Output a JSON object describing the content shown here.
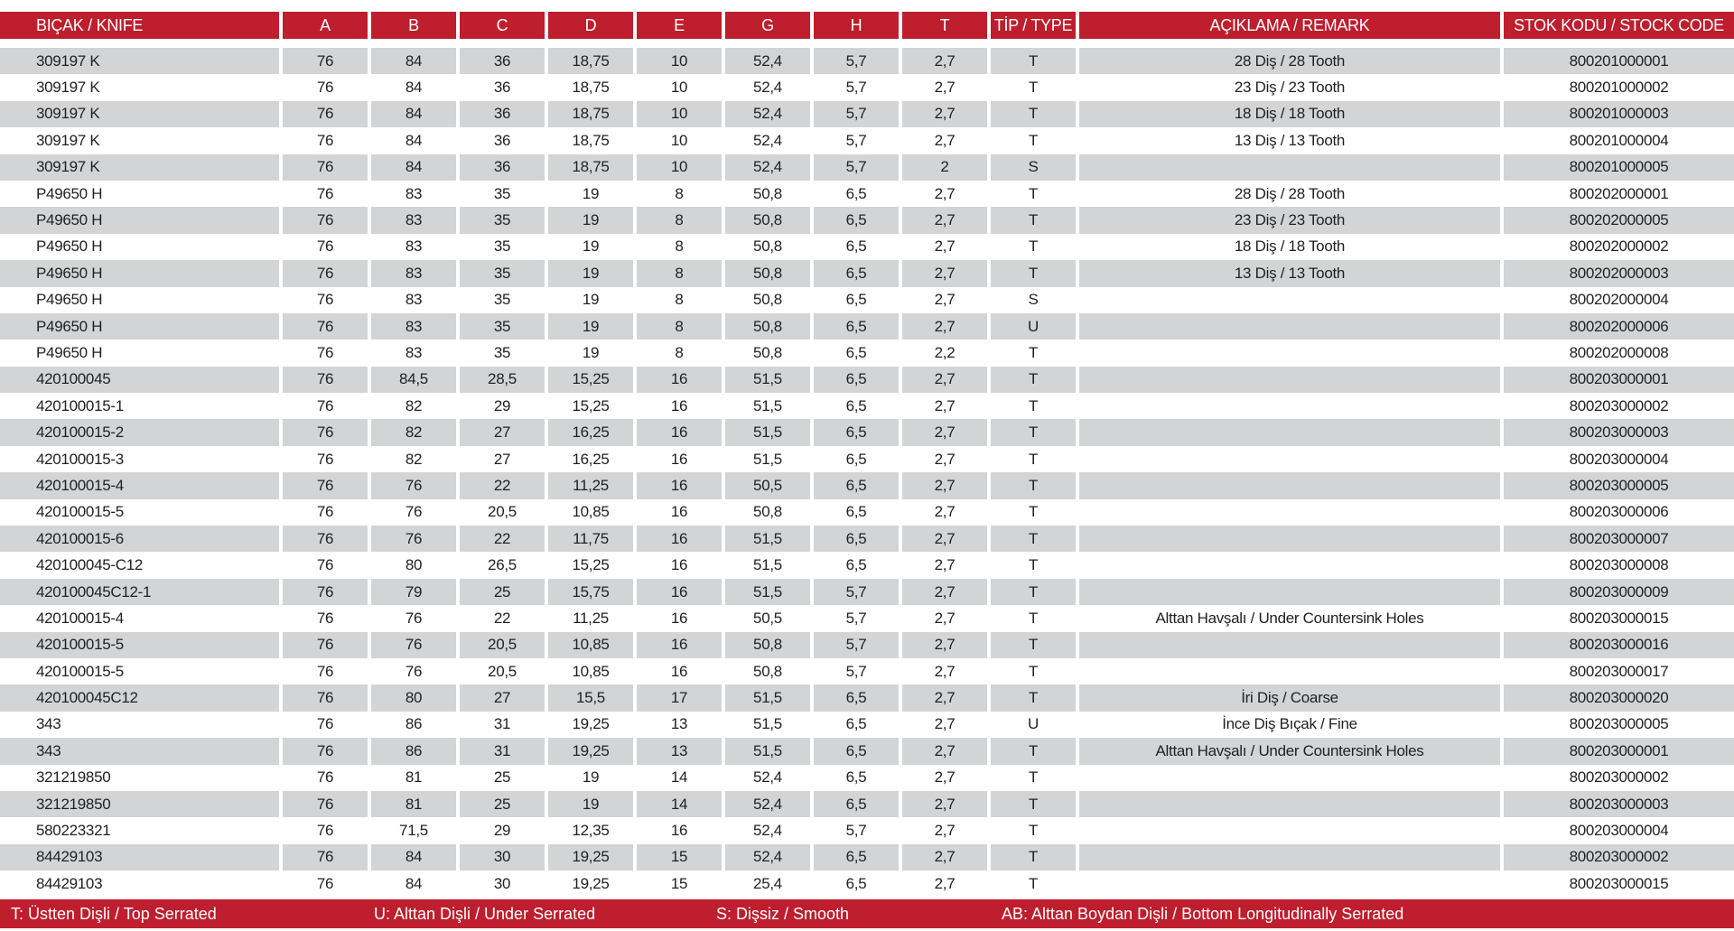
{
  "colors": {
    "header": "#be1e2d",
    "stripe": "#d3d4d6"
  },
  "headers": [
    "BIÇAK / KNIFE",
    "A",
    "B",
    "C",
    "D",
    "E",
    "G",
    "H",
    "T",
    "TİP / TYPE",
    "AÇIKLAMA / REMARK",
    "STOK KODU / STOCK CODE"
  ],
  "rows": [
    [
      "309197 K",
      "76",
      "84",
      "36",
      "18,75",
      "10",
      "52,4",
      "5,7",
      "2,7",
      "T",
      "28 Diş / 28 Tooth",
      "800201000001"
    ],
    [
      "309197 K",
      "76",
      "84",
      "36",
      "18,75",
      "10",
      "52,4",
      "5,7",
      "2,7",
      "T",
      "23 Diş / 23 Tooth",
      "800201000002"
    ],
    [
      "309197 K",
      "76",
      "84",
      "36",
      "18,75",
      "10",
      "52,4",
      "5,7",
      "2,7",
      "T",
      "18 Diş / 18 Tooth",
      "800201000003"
    ],
    [
      "309197 K",
      "76",
      "84",
      "36",
      "18,75",
      "10",
      "52,4",
      "5,7",
      "2,7",
      "T",
      "13 Diş / 13 Tooth",
      "800201000004"
    ],
    [
      "309197 K",
      "76",
      "84",
      "36",
      "18,75",
      "10",
      "52,4",
      "5,7",
      "2",
      "S",
      "",
      "800201000005"
    ],
    [
      "P49650 H",
      "76",
      "83",
      "35",
      "19",
      "8",
      "50,8",
      "6,5",
      "2,7",
      "T",
      "28 Diş / 28 Tooth",
      "800202000001"
    ],
    [
      "P49650 H",
      "76",
      "83",
      "35",
      "19",
      "8",
      "50,8",
      "6,5",
      "2,7",
      "T",
      "23 Diş / 23 Tooth",
      "800202000005"
    ],
    [
      "P49650 H",
      "76",
      "83",
      "35",
      "19",
      "8",
      "50,8",
      "6,5",
      "2,7",
      "T",
      "18 Diş / 18 Tooth",
      "800202000002"
    ],
    [
      "P49650 H",
      "76",
      "83",
      "35",
      "19",
      "8",
      "50,8",
      "6,5",
      "2,7",
      "T",
      "13 Diş / 13 Tooth",
      "800202000003"
    ],
    [
      "P49650 H",
      "76",
      "83",
      "35",
      "19",
      "8",
      "50,8",
      "6,5",
      "2,7",
      "S",
      "",
      "800202000004"
    ],
    [
      "P49650 H",
      "76",
      "83",
      "35",
      "19",
      "8",
      "50,8",
      "6,5",
      "2,7",
      "U",
      "",
      "800202000006"
    ],
    [
      "P49650 H",
      "76",
      "83",
      "35",
      "19",
      "8",
      "50,8",
      "6,5",
      "2,2",
      "T",
      "",
      "800202000008"
    ],
    [
      "420100045",
      "76",
      "84,5",
      "28,5",
      "15,25",
      "16",
      "51,5",
      "6,5",
      "2,7",
      "T",
      "",
      "800203000001"
    ],
    [
      "420100015-1",
      "76",
      "82",
      "29",
      "15,25",
      "16",
      "51,5",
      "6,5",
      "2,7",
      "T",
      "",
      "800203000002"
    ],
    [
      "420100015-2",
      "76",
      "82",
      "27",
      "16,25",
      "16",
      "51,5",
      "6,5",
      "2,7",
      "T",
      "",
      "800203000003"
    ],
    [
      "420100015-3",
      "76",
      "82",
      "27",
      "16,25",
      "16",
      "51,5",
      "6,5",
      "2,7",
      "T",
      "",
      "800203000004"
    ],
    [
      "420100015-4",
      "76",
      "76",
      "22",
      "11,25",
      "16",
      "50,5",
      "6,5",
      "2,7",
      "T",
      "",
      "800203000005"
    ],
    [
      "420100015-5",
      "76",
      "76",
      "20,5",
      "10,85",
      "16",
      "50,8",
      "6,5",
      "2,7",
      "T",
      "",
      "800203000006"
    ],
    [
      "420100015-6",
      "76",
      "76",
      "22",
      "11,75",
      "16",
      "51,5",
      "6,5",
      "2,7",
      "T",
      "",
      "800203000007"
    ],
    [
      "420100045-C12",
      "76",
      "80",
      "26,5",
      "15,25",
      "16",
      "51,5",
      "6,5",
      "2,7",
      "T",
      "",
      "800203000008"
    ],
    [
      "420100045C12-1",
      "76",
      "79",
      "25",
      "15,75",
      "16",
      "51,5",
      "5,7",
      "2,7",
      "T",
      "",
      "800203000009"
    ],
    [
      "420100015-4",
      "76",
      "76",
      "22",
      "11,25",
      "16",
      "50,5",
      "5,7",
      "2,7",
      "T",
      "Alttan Havşalı / Under Countersink Holes",
      "800203000015"
    ],
    [
      "420100015-5",
      "76",
      "76",
      "20,5",
      "10,85",
      "16",
      "50,8",
      "5,7",
      "2,7",
      "T",
      "",
      "800203000016"
    ],
    [
      "420100015-5",
      "76",
      "76",
      "20,5",
      "10,85",
      "16",
      "50,8",
      "5,7",
      "2,7",
      "T",
      "",
      "800203000017"
    ],
    [
      "420100045C12",
      "76",
      "80",
      "27",
      "15,5",
      "17",
      "51,5",
      "6,5",
      "2,7",
      "T",
      "İri Diş / Coarse",
      "800203000020"
    ],
    [
      "343",
      "76",
      "86",
      "31",
      "19,25",
      "13",
      "51,5",
      "6,5",
      "2,7",
      "U",
      "İnce Diş Bıçak / Fine",
      "800203000005"
    ],
    [
      "343",
      "76",
      "86",
      "31",
      "19,25",
      "13",
      "51,5",
      "6,5",
      "2,7",
      "T",
      "Alttan Havşalı / Under Countersink Holes",
      "800203000001"
    ],
    [
      "321219850",
      "76",
      "81",
      "25",
      "19",
      "14",
      "52,4",
      "6,5",
      "2,7",
      "T",
      "",
      "800203000002"
    ],
    [
      "321219850",
      "76",
      "81",
      "25",
      "19",
      "14",
      "52,4",
      "6,5",
      "2,7",
      "T",
      "",
      "800203000003"
    ],
    [
      "580223321",
      "76",
      "71,5",
      "29",
      "12,35",
      "16",
      "52,4",
      "5,7",
      "2,7",
      "T",
      "",
      "800203000004"
    ],
    [
      "84429103",
      "76",
      "84",
      "30",
      "19,25",
      "15",
      "52,4",
      "6,5",
      "2,7",
      "T",
      "",
      "800203000002"
    ],
    [
      "84429103",
      "76",
      "84",
      "30",
      "19,25",
      "15",
      "25,4",
      "6,5",
      "2,7",
      "T",
      "",
      "800203000015"
    ]
  ],
  "legend": [
    "T: Üstten Dişli / Top Serrated",
    "U: Alttan Dişli / Under Serrated",
    "S: Dişsiz / Smooth",
    "AB: Alttan Boydan Dişli / Bottom Longitudinally Serrated"
  ]
}
